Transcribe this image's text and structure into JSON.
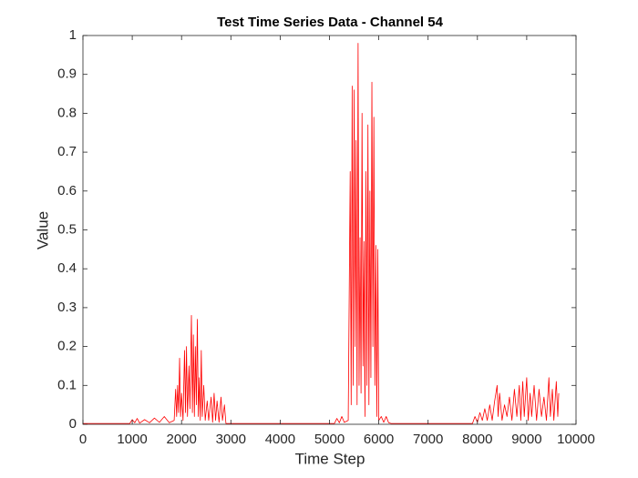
{
  "chart_data": {
    "type": "line",
    "title": "Test Time Series Data - Channel 54",
    "x_label": "Time Step",
    "y_label": "Value",
    "x": [
      0,
      500,
      950,
      1000,
      1050,
      1100,
      1150,
      1250,
      1350,
      1450,
      1550,
      1650,
      1750,
      1850,
      1880,
      1900,
      1920,
      1940,
      1960,
      1980,
      2000,
      2030,
      2060,
      2080,
      2100,
      2120,
      2150,
      2170,
      2200,
      2220,
      2240,
      2260,
      2280,
      2300,
      2320,
      2340,
      2360,
      2380,
      2400,
      2420,
      2450,
      2480,
      2520,
      2550,
      2600,
      2630,
      2660,
      2690,
      2720,
      2760,
      2800,
      2830,
      2870,
      2900,
      3500,
      4500,
      5100,
      5150,
      5200,
      5250,
      5300,
      5380,
      5420,
      5440,
      5460,
      5480,
      5500,
      5520,
      5540,
      5560,
      5580,
      5600,
      5620,
      5640,
      5660,
      5680,
      5700,
      5720,
      5740,
      5760,
      5780,
      5800,
      5820,
      5840,
      5860,
      5880,
      5900,
      5920,
      5940,
      5960,
      5980,
      6000,
      6050,
      6100,
      6150,
      6200,
      6250,
      7000,
      7900,
      7950,
      8000,
      8050,
      8100,
      8150,
      8200,
      8250,
      8300,
      8350,
      8400,
      8420,
      8450,
      8500,
      8550,
      8600,
      8650,
      8700,
      8750,
      8800,
      8850,
      8880,
      8920,
      8950,
      9000,
      9030,
      9070,
      9100,
      9150,
      9200,
      9250,
      9300,
      9350,
      9400,
      9450,
      9480,
      9520,
      9550,
      9600,
      9630,
      9650
    ],
    "series": [
      {
        "color": "#ff0000",
        "values": [
          0.002,
          0.002,
          0.002,
          0.012,
          0.004,
          0.015,
          0.003,
          0.012,
          0.004,
          0.016,
          0.005,
          0.02,
          0.004,
          0.01,
          0.09,
          0.02,
          0.1,
          0.03,
          0.17,
          0.02,
          0.08,
          0.01,
          0.19,
          0.03,
          0.2,
          0.02,
          0.15,
          0.04,
          0.28,
          0.03,
          0.23,
          0.02,
          0.2,
          0.05,
          0.27,
          0.02,
          0.12,
          0.01,
          0.19,
          0.02,
          0.1,
          0.01,
          0.06,
          0.01,
          0.07,
          0.005,
          0.08,
          0.01,
          0.06,
          0.005,
          0.07,
          0.01,
          0.05,
          0.002,
          0.002,
          0.002,
          0.002,
          0.015,
          0.004,
          0.02,
          0.005,
          0.01,
          0.65,
          0.05,
          0.87,
          0.1,
          0.86,
          0.2,
          0.73,
          0.05,
          0.98,
          0.1,
          0.48,
          0.08,
          0.8,
          0.15,
          0.47,
          0.02,
          0.65,
          0.1,
          0.77,
          0.05,
          0.6,
          0.12,
          0.88,
          0.2,
          0.79,
          0.1,
          0.46,
          0.02,
          0.45,
          0.01,
          0.02,
          0.005,
          0.02,
          0.004,
          0.002,
          0.002,
          0.002,
          0.02,
          0.005,
          0.03,
          0.01,
          0.04,
          0.01,
          0.05,
          0.01,
          0.06,
          0.1,
          0.02,
          0.08,
          0.01,
          0.05,
          0.02,
          0.07,
          0.01,
          0.09,
          0.02,
          0.1,
          0.01,
          0.11,
          0.02,
          0.12,
          0.01,
          0.08,
          0.02,
          0.1,
          0.01,
          0.09,
          0.02,
          0.07,
          0.01,
          0.12,
          0.02,
          0.09,
          0.01,
          0.11,
          0.02,
          0.08
        ]
      }
    ],
    "xlim": [
      0,
      10000
    ],
    "ylim": [
      0,
      1
    ],
    "xticks": [
      0,
      1000,
      2000,
      3000,
      4000,
      5000,
      6000,
      7000,
      8000,
      9000,
      10000
    ],
    "yticks": [
      0,
      0.1,
      0.2,
      0.3,
      0.4,
      0.5,
      0.6,
      0.7,
      0.8,
      0.9,
      1
    ]
  }
}
